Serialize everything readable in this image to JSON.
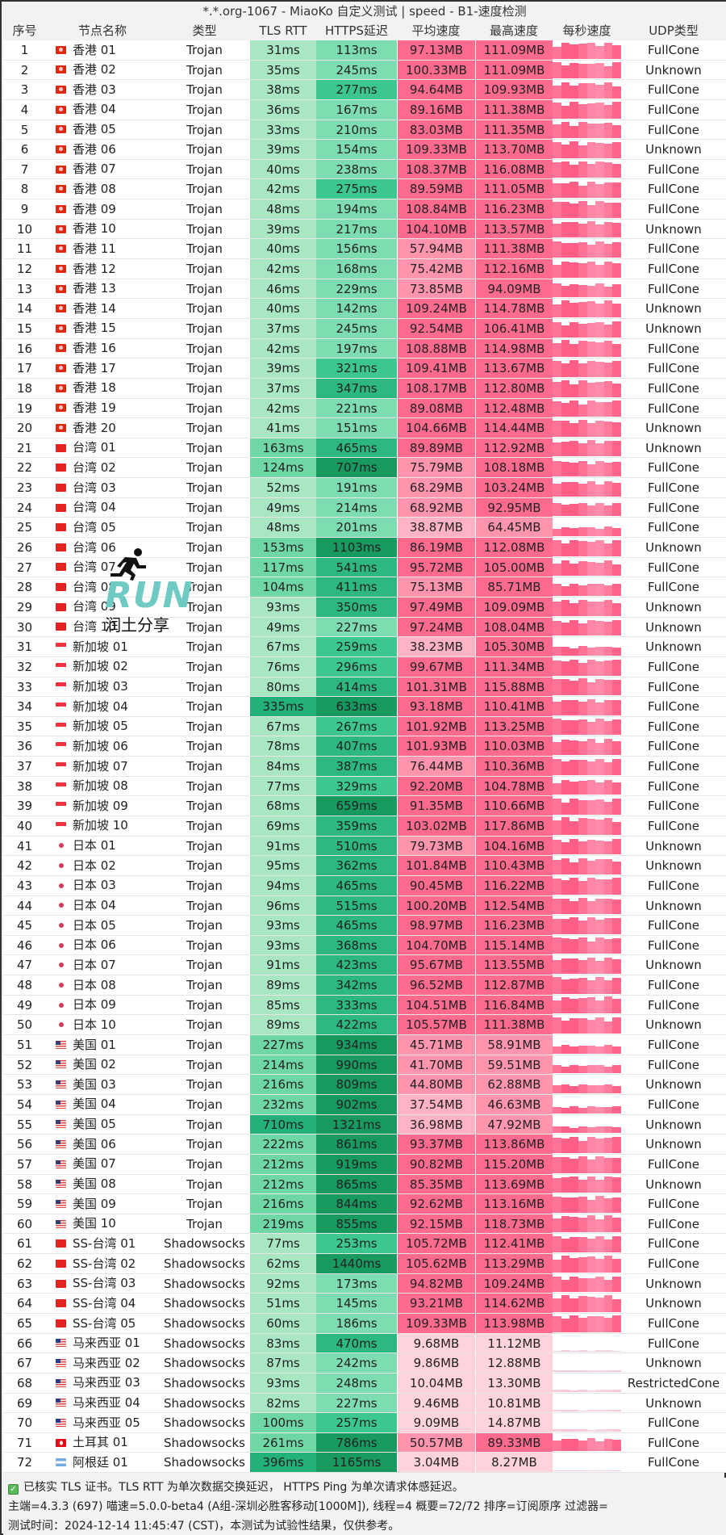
{
  "window": {
    "title": "*.*.org-1067 - MiaoKo 自定义测试 | speed - B1-速度检测"
  },
  "columns": [
    "序号",
    "节点名称",
    "类型",
    "TLS RTT",
    "HTTPS延迟",
    "平均速度",
    "最高速度",
    "每秒速度",
    "UDP类型"
  ],
  "colors": {
    "tls_light": "#a8e6c4",
    "tls_mid": "#6fd6a5",
    "tls_dark": "#23b079",
    "https_light": "#7ddcb0",
    "https_mid": "#3cc78e",
    "https_dark": "#17995f",
    "speed_high": "#ff6b8f",
    "speed_mid": "#ff94ad",
    "speed_low": "#ffd3dc",
    "spark": "#ff5c85"
  },
  "rows": [
    {
      "idx": "1",
      "flag": "hk",
      "name": "香港 01",
      "type": "Trojan",
      "tls": "31ms",
      "https": "113ms",
      "avg": "97.13MB",
      "max": "111.09MB",
      "udp": "FullCone"
    },
    {
      "idx": "2",
      "flag": "hk",
      "name": "香港 02",
      "type": "Trojan",
      "tls": "35ms",
      "https": "245ms",
      "avg": "100.33MB",
      "max": "111.09MB",
      "udp": "Unknown"
    },
    {
      "idx": "3",
      "flag": "hk",
      "name": "香港 03",
      "type": "Trojan",
      "tls": "38ms",
      "https": "277ms",
      "avg": "94.64MB",
      "max": "109.93MB",
      "udp": "FullCone"
    },
    {
      "idx": "4",
      "flag": "hk",
      "name": "香港 04",
      "type": "Trojan",
      "tls": "36ms",
      "https": "167ms",
      "avg": "89.16MB",
      "max": "111.38MB",
      "udp": "FullCone"
    },
    {
      "idx": "5",
      "flag": "hk",
      "name": "香港 05",
      "type": "Trojan",
      "tls": "33ms",
      "https": "210ms",
      "avg": "83.03MB",
      "max": "111.35MB",
      "udp": "FullCone"
    },
    {
      "idx": "6",
      "flag": "hk",
      "name": "香港 06",
      "type": "Trojan",
      "tls": "39ms",
      "https": "154ms",
      "avg": "109.33MB",
      "max": "113.70MB",
      "udp": "Unknown"
    },
    {
      "idx": "7",
      "flag": "hk",
      "name": "香港 07",
      "type": "Trojan",
      "tls": "40ms",
      "https": "238ms",
      "avg": "108.37MB",
      "max": "116.08MB",
      "udp": "FullCone"
    },
    {
      "idx": "8",
      "flag": "hk",
      "name": "香港 08",
      "type": "Trojan",
      "tls": "42ms",
      "https": "275ms",
      "avg": "89.59MB",
      "max": "111.05MB",
      "udp": "FullCone"
    },
    {
      "idx": "9",
      "flag": "hk",
      "name": "香港 09",
      "type": "Trojan",
      "tls": "48ms",
      "https": "194ms",
      "avg": "108.84MB",
      "max": "116.23MB",
      "udp": "FullCone"
    },
    {
      "idx": "10",
      "flag": "hk",
      "name": "香港 10",
      "type": "Trojan",
      "tls": "39ms",
      "https": "217ms",
      "avg": "104.10MB",
      "max": "113.57MB",
      "udp": "Unknown"
    },
    {
      "idx": "11",
      "flag": "hk",
      "name": "香港 11",
      "type": "Trojan",
      "tls": "40ms",
      "https": "156ms",
      "avg": "57.94MB",
      "max": "111.38MB",
      "udp": "FullCone"
    },
    {
      "idx": "12",
      "flag": "hk",
      "name": "香港 12",
      "type": "Trojan",
      "tls": "42ms",
      "https": "168ms",
      "avg": "75.42MB",
      "max": "112.16MB",
      "udp": "FullCone"
    },
    {
      "idx": "13",
      "flag": "hk",
      "name": "香港 13",
      "type": "Trojan",
      "tls": "46ms",
      "https": "229ms",
      "avg": "73.85MB",
      "max": "94.09MB",
      "udp": "FullCone"
    },
    {
      "idx": "14",
      "flag": "hk",
      "name": "香港 14",
      "type": "Trojan",
      "tls": "40ms",
      "https": "142ms",
      "avg": "109.24MB",
      "max": "114.78MB",
      "udp": "Unknown"
    },
    {
      "idx": "15",
      "flag": "hk",
      "name": "香港 15",
      "type": "Trojan",
      "tls": "37ms",
      "https": "245ms",
      "avg": "92.54MB",
      "max": "106.41MB",
      "udp": "Unknown"
    },
    {
      "idx": "16",
      "flag": "hk",
      "name": "香港 16",
      "type": "Trojan",
      "tls": "42ms",
      "https": "197ms",
      "avg": "108.88MB",
      "max": "114.98MB",
      "udp": "FullCone"
    },
    {
      "idx": "17",
      "flag": "hk",
      "name": "香港 17",
      "type": "Trojan",
      "tls": "39ms",
      "https": "321ms",
      "avg": "109.41MB",
      "max": "113.67MB",
      "udp": "FullCone"
    },
    {
      "idx": "18",
      "flag": "hk",
      "name": "香港 18",
      "type": "Trojan",
      "tls": "37ms",
      "https": "347ms",
      "avg": "108.17MB",
      "max": "112.80MB",
      "udp": "FullCone"
    },
    {
      "idx": "19",
      "flag": "hk",
      "name": "香港 19",
      "type": "Trojan",
      "tls": "42ms",
      "https": "221ms",
      "avg": "89.08MB",
      "max": "112.48MB",
      "udp": "FullCone"
    },
    {
      "idx": "20",
      "flag": "hk",
      "name": "香港 20",
      "type": "Trojan",
      "tls": "41ms",
      "https": "151ms",
      "avg": "104.66MB",
      "max": "114.44MB",
      "udp": "Unknown"
    },
    {
      "idx": "21",
      "flag": "tw",
      "name": "台湾 01",
      "type": "Trojan",
      "tls": "163ms",
      "https": "465ms",
      "avg": "89.89MB",
      "max": "112.92MB",
      "udp": "Unknown"
    },
    {
      "idx": "22",
      "flag": "tw",
      "name": "台湾 02",
      "type": "Trojan",
      "tls": "124ms",
      "https": "707ms",
      "avg": "75.79MB",
      "max": "108.18MB",
      "udp": "FullCone"
    },
    {
      "idx": "23",
      "flag": "tw",
      "name": "台湾 03",
      "type": "Trojan",
      "tls": "52ms",
      "https": "191ms",
      "avg": "68.29MB",
      "max": "103.24MB",
      "udp": "FullCone"
    },
    {
      "idx": "24",
      "flag": "tw",
      "name": "台湾 04",
      "type": "Trojan",
      "tls": "49ms",
      "https": "214ms",
      "avg": "68.92MB",
      "max": "92.95MB",
      "udp": "FullCone"
    },
    {
      "idx": "25",
      "flag": "tw",
      "name": "台湾 05",
      "type": "Trojan",
      "tls": "48ms",
      "https": "201ms",
      "avg": "38.87MB",
      "max": "64.45MB",
      "udp": "FullCone"
    },
    {
      "idx": "26",
      "flag": "tw",
      "name": "台湾 06",
      "type": "Trojan",
      "tls": "153ms",
      "https": "1103ms",
      "avg": "86.19MB",
      "max": "112.08MB",
      "udp": "Unknown"
    },
    {
      "idx": "27",
      "flag": "tw",
      "name": "台湾 07",
      "type": "Trojan",
      "tls": "117ms",
      "https": "541ms",
      "avg": "95.72MB",
      "max": "105.00MB",
      "udp": "FullCone"
    },
    {
      "idx": "28",
      "flag": "tw",
      "name": "台湾 08",
      "type": "Trojan",
      "tls": "104ms",
      "https": "411ms",
      "avg": "75.13MB",
      "max": "85.71MB",
      "udp": "FullCone"
    },
    {
      "idx": "29",
      "flag": "tw",
      "name": "台湾 09",
      "type": "Trojan",
      "tls": "93ms",
      "https": "350ms",
      "avg": "97.49MB",
      "max": "109.09MB",
      "udp": "Unknown"
    },
    {
      "idx": "30",
      "flag": "tw",
      "name": "台湾 10",
      "type": "Trojan",
      "tls": "49ms",
      "https": "227ms",
      "avg": "97.24MB",
      "max": "108.04MB",
      "udp": "Unknown"
    },
    {
      "idx": "31",
      "flag": "sg",
      "name": "新加坡 01",
      "type": "Trojan",
      "tls": "67ms",
      "https": "259ms",
      "avg": "38.23MB",
      "max": "105.30MB",
      "udp": "Unknown"
    },
    {
      "idx": "32",
      "flag": "sg",
      "name": "新加坡 02",
      "type": "Trojan",
      "tls": "76ms",
      "https": "296ms",
      "avg": "99.67MB",
      "max": "111.34MB",
      "udp": "FullCone"
    },
    {
      "idx": "33",
      "flag": "sg",
      "name": "新加坡 03",
      "type": "Trojan",
      "tls": "80ms",
      "https": "414ms",
      "avg": "101.31MB",
      "max": "115.88MB",
      "udp": "FullCone"
    },
    {
      "idx": "34",
      "flag": "sg",
      "name": "新加坡 04",
      "type": "Trojan",
      "tls": "335ms",
      "https": "633ms",
      "avg": "93.18MB",
      "max": "110.41MB",
      "udp": "FullCone"
    },
    {
      "idx": "35",
      "flag": "sg",
      "name": "新加坡 05",
      "type": "Trojan",
      "tls": "67ms",
      "https": "267ms",
      "avg": "101.92MB",
      "max": "113.25MB",
      "udp": "FullCone"
    },
    {
      "idx": "36",
      "flag": "sg",
      "name": "新加坡 06",
      "type": "Trojan",
      "tls": "78ms",
      "https": "407ms",
      "avg": "101.93MB",
      "max": "110.03MB",
      "udp": "FullCone"
    },
    {
      "idx": "37",
      "flag": "sg",
      "name": "新加坡 07",
      "type": "Trojan",
      "tls": "84ms",
      "https": "387ms",
      "avg": "76.44MB",
      "max": "110.36MB",
      "udp": "FullCone"
    },
    {
      "idx": "38",
      "flag": "sg",
      "name": "新加坡 08",
      "type": "Trojan",
      "tls": "77ms",
      "https": "329ms",
      "avg": "92.20MB",
      "max": "104.78MB",
      "udp": "FullCone"
    },
    {
      "idx": "39",
      "flag": "sg",
      "name": "新加坡 09",
      "type": "Trojan",
      "tls": "68ms",
      "https": "659ms",
      "avg": "91.35MB",
      "max": "110.66MB",
      "udp": "FullCone"
    },
    {
      "idx": "40",
      "flag": "sg",
      "name": "新加坡 10",
      "type": "Trojan",
      "tls": "69ms",
      "https": "359ms",
      "avg": "103.02MB",
      "max": "117.86MB",
      "udp": "FullCone"
    },
    {
      "idx": "41",
      "flag": "jp",
      "name": "日本 01",
      "type": "Trojan",
      "tls": "91ms",
      "https": "510ms",
      "avg": "79.73MB",
      "max": "104.16MB",
      "udp": "Unknown"
    },
    {
      "idx": "42",
      "flag": "jp",
      "name": "日本 02",
      "type": "Trojan",
      "tls": "95ms",
      "https": "362ms",
      "avg": "101.84MB",
      "max": "110.43MB",
      "udp": "Unknown"
    },
    {
      "idx": "43",
      "flag": "jp",
      "name": "日本 03",
      "type": "Trojan",
      "tls": "94ms",
      "https": "465ms",
      "avg": "90.45MB",
      "max": "116.22MB",
      "udp": "FullCone"
    },
    {
      "idx": "44",
      "flag": "jp",
      "name": "日本 04",
      "type": "Trojan",
      "tls": "96ms",
      "https": "515ms",
      "avg": "100.20MB",
      "max": "112.54MB",
      "udp": "Unknown"
    },
    {
      "idx": "45",
      "flag": "jp",
      "name": "日本 05",
      "type": "Trojan",
      "tls": "93ms",
      "https": "465ms",
      "avg": "98.97MB",
      "max": "116.23MB",
      "udp": "FullCone"
    },
    {
      "idx": "46",
      "flag": "jp",
      "name": "日本 06",
      "type": "Trojan",
      "tls": "93ms",
      "https": "368ms",
      "avg": "104.70MB",
      "max": "115.14MB",
      "udp": "FullCone"
    },
    {
      "idx": "47",
      "flag": "jp",
      "name": "日本 07",
      "type": "Trojan",
      "tls": "91ms",
      "https": "423ms",
      "avg": "95.67MB",
      "max": "113.55MB",
      "udp": "Unknown"
    },
    {
      "idx": "48",
      "flag": "jp",
      "name": "日本 08",
      "type": "Trojan",
      "tls": "89ms",
      "https": "342ms",
      "avg": "96.52MB",
      "max": "112.87MB",
      "udp": "FullCone"
    },
    {
      "idx": "49",
      "flag": "jp",
      "name": "日本 09",
      "type": "Trojan",
      "tls": "85ms",
      "https": "333ms",
      "avg": "104.51MB",
      "max": "116.84MB",
      "udp": "FullCone"
    },
    {
      "idx": "50",
      "flag": "jp",
      "name": "日本 10",
      "type": "Trojan",
      "tls": "89ms",
      "https": "422ms",
      "avg": "105.57MB",
      "max": "111.38MB",
      "udp": "Unknown"
    },
    {
      "idx": "51",
      "flag": "us",
      "name": "美国 01",
      "type": "Trojan",
      "tls": "227ms",
      "https": "934ms",
      "avg": "45.71MB",
      "max": "58.91MB",
      "udp": "FullCone"
    },
    {
      "idx": "52",
      "flag": "us",
      "name": "美国 02",
      "type": "Trojan",
      "tls": "214ms",
      "https": "990ms",
      "avg": "41.70MB",
      "max": "59.51MB",
      "udp": "FullCone"
    },
    {
      "idx": "53",
      "flag": "us",
      "name": "美国 03",
      "type": "Trojan",
      "tls": "216ms",
      "https": "809ms",
      "avg": "44.80MB",
      "max": "62.88MB",
      "udp": "Unknown"
    },
    {
      "idx": "54",
      "flag": "us",
      "name": "美国 04",
      "type": "Trojan",
      "tls": "232ms",
      "https": "902ms",
      "avg": "37.54MB",
      "max": "46.63MB",
      "udp": "FullCone"
    },
    {
      "idx": "55",
      "flag": "us",
      "name": "美国 05",
      "type": "Trojan",
      "tls": "710ms",
      "https": "1321ms",
      "avg": "36.98MB",
      "max": "47.92MB",
      "udp": "Unknown"
    },
    {
      "idx": "56",
      "flag": "us",
      "name": "美国 06",
      "type": "Trojan",
      "tls": "222ms",
      "https": "861ms",
      "avg": "93.37MB",
      "max": "113.86MB",
      "udp": "Unknown"
    },
    {
      "idx": "57",
      "flag": "us",
      "name": "美国 07",
      "type": "Trojan",
      "tls": "212ms",
      "https": "919ms",
      "avg": "90.82MB",
      "max": "115.20MB",
      "udp": "FullCone"
    },
    {
      "idx": "58",
      "flag": "us",
      "name": "美国 08",
      "type": "Trojan",
      "tls": "212ms",
      "https": "865ms",
      "avg": "85.35MB",
      "max": "113.69MB",
      "udp": "Unknown"
    },
    {
      "idx": "59",
      "flag": "us",
      "name": "美国 09",
      "type": "Trojan",
      "tls": "216ms",
      "https": "844ms",
      "avg": "92.62MB",
      "max": "113.16MB",
      "udp": "FullCone"
    },
    {
      "idx": "60",
      "flag": "us",
      "name": "美国 10",
      "type": "Trojan",
      "tls": "219ms",
      "https": "855ms",
      "avg": "92.15MB",
      "max": "118.73MB",
      "udp": "FullCone"
    },
    {
      "idx": "61",
      "flag": "tw",
      "name": "SS-台湾 01",
      "type": "Shadowsocks",
      "tls": "77ms",
      "https": "253ms",
      "avg": "105.72MB",
      "max": "112.41MB",
      "udp": "FullCone"
    },
    {
      "idx": "62",
      "flag": "tw",
      "name": "SS-台湾 02",
      "type": "Shadowsocks",
      "tls": "62ms",
      "https": "1440ms",
      "avg": "105.62MB",
      "max": "113.29MB",
      "udp": "FullCone"
    },
    {
      "idx": "63",
      "flag": "tw",
      "name": "SS-台湾 03",
      "type": "Shadowsocks",
      "tls": "92ms",
      "https": "173ms",
      "avg": "94.82MB",
      "max": "109.24MB",
      "udp": "Unknown"
    },
    {
      "idx": "64",
      "flag": "tw",
      "name": "SS-台湾 04",
      "type": "Shadowsocks",
      "tls": "51ms",
      "https": "145ms",
      "avg": "93.21MB",
      "max": "114.62MB",
      "udp": "Unknown"
    },
    {
      "idx": "65",
      "flag": "tw",
      "name": "SS-台湾 05",
      "type": "Shadowsocks",
      "tls": "60ms",
      "https": "186ms",
      "avg": "109.33MB",
      "max": "113.98MB",
      "udp": "FullCone"
    },
    {
      "idx": "66",
      "flag": "my",
      "name": "马来西亚 01",
      "type": "Shadowsocks",
      "tls": "83ms",
      "https": "470ms",
      "avg": "9.68MB",
      "max": "11.12MB",
      "udp": "FullCone"
    },
    {
      "idx": "67",
      "flag": "my",
      "name": "马来西亚 02",
      "type": "Shadowsocks",
      "tls": "87ms",
      "https": "242ms",
      "avg": "9.86MB",
      "max": "12.88MB",
      "udp": "Unknown"
    },
    {
      "idx": "68",
      "flag": "my",
      "name": "马来西亚 03",
      "type": "Shadowsocks",
      "tls": "93ms",
      "https": "248ms",
      "avg": "10.04MB",
      "max": "13.30MB",
      "udp": "RestrictedCone"
    },
    {
      "idx": "69",
      "flag": "my",
      "name": "马来西亚 04",
      "type": "Shadowsocks",
      "tls": "82ms",
      "https": "227ms",
      "avg": "9.46MB",
      "max": "10.81MB",
      "udp": "Unknown"
    },
    {
      "idx": "70",
      "flag": "my",
      "name": "马来西亚 05",
      "type": "Shadowsocks",
      "tls": "100ms",
      "https": "257ms",
      "avg": "9.09MB",
      "max": "14.87MB",
      "udp": "FullCone"
    },
    {
      "idx": "71",
      "flag": "tr",
      "name": "土耳其 01",
      "type": "Shadowsocks",
      "tls": "261ms",
      "https": "786ms",
      "avg": "50.57MB",
      "max": "89.33MB",
      "udp": "FullCone"
    },
    {
      "idx": "72",
      "flag": "ar",
      "name": "阿根廷 01",
      "type": "Shadowsocks",
      "tls": "396ms",
      "https": "1165ms",
      "avg": "3.04MB",
      "max": "8.27MB",
      "udp": "FullCone"
    }
  ],
  "footer": {
    "line1": "已核实 TLS 证书。TLS RTT 为单次数据交换延迟， HTTPS Ping 为单次请求体感延迟。",
    "line2": "主端=4.3.3 (697) 喵速=5.0.0-beta4 (A组-深圳必胜客移动[1000M]), 线程=4 概要=72/72 排序=订阅原序 过滤器=",
    "line3": "测试时间：2024-12-14 11:45:47 (CST)，本测试为试验性结果，仅供参考。"
  },
  "watermark": {
    "logo_text": "RUN",
    "logo_caption": "润土分享"
  }
}
